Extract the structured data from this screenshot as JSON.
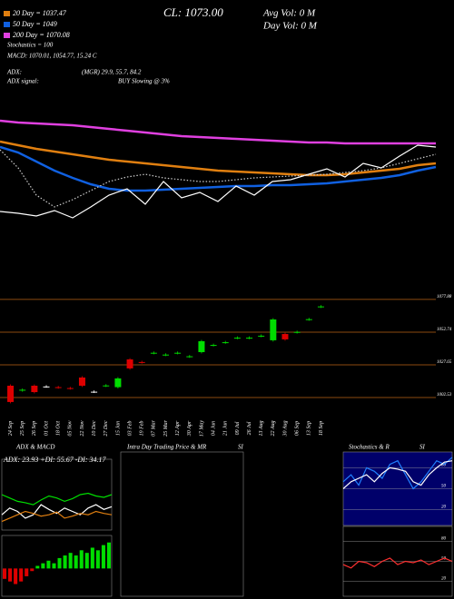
{
  "chart_data": [
    {
      "type": "line",
      "annotations": [
        "Stochastics = 100",
        "MACD: 1070.01, 1054.77, 15.24 C",
        "ADX:",
        "(MGR) 29.9, 55.7, 84.2",
        "ADX signal:",
        "BUY Slowing @ 3%",
        "CL: 1073.00",
        "Avg Vol: 0 M",
        "Day Vol: 0 M"
      ],
      "ylim": [
        1000,
        1100
      ],
      "series": [
        {
          "name": "20 Day = 1037.47",
          "color": "#e07f10",
          "values": [
            1072,
            1070,
            1068,
            1066.5,
            1065,
            1063.5,
            1062,
            1061,
            1060,
            1059,
            1058,
            1057,
            1056,
            1055.5,
            1055,
            1054.5,
            1054,
            1053.5,
            1053.5,
            1054,
            1055,
            1056,
            1057,
            1059,
            1060
          ]
        },
        {
          "name": "50 Day = 1049",
          "color": "#1060e0",
          "values": [
            1069,
            1066,
            1061,
            1056,
            1052,
            1048.5,
            1046,
            1045,
            1045,
            1045.5,
            1046,
            1046.5,
            1047,
            1047.5,
            1047.5,
            1048,
            1048,
            1048.5,
            1049,
            1050,
            1051,
            1052,
            1053.5,
            1056,
            1058
          ]
        },
        {
          "name": "200 Day = 1070.08",
          "color": "#e040e0",
          "values": [
            1083.5,
            1082.5,
            1082,
            1081.5,
            1081,
            1080,
            1079,
            1078,
            1077,
            1076,
            1075,
            1074.5,
            1074,
            1073.5,
            1073,
            1072.5,
            1072,
            1071.5,
            1071.5,
            1071,
            1071,
            1071,
            1071,
            1071,
            1071
          ]
        },
        {
          "color": "#ffffff",
          "values": [
            1033.5,
            1032.5,
            1031,
            1034,
            1030,
            1036,
            1042.5,
            1046,
            1037.5,
            1050,
            1041,
            1044,
            1039,
            1047.5,
            1042.5,
            1050,
            1051,
            1054,
            1057,
            1052.5,
            1060,
            1057.5,
            1064,
            1070,
            1069
          ]
        },
        {
          "color": "#cccccc",
          "dashed": true,
          "values": [
            1067.5,
            1057.5,
            1042.5,
            1036,
            1040,
            1045,
            1050,
            1052.5,
            1054,
            1052,
            1051,
            1050,
            1050,
            1051,
            1052,
            1052.5,
            1053,
            1053.5,
            1054,
            1055,
            1056,
            1057.5,
            1060,
            1062.5,
            1065
          ]
        }
      ]
    },
    {
      "type": "candlestick",
      "categories": [
        "24 Sep",
        "25 Sep",
        "26 Sep",
        "01 Oct",
        "18 Oct",
        "05 Nov",
        "22 Nov",
        "10 Dec",
        "27 Dec",
        "15 Jan",
        "03 Feb",
        "19 Feb",
        "07 Mar",
        "25 Mar",
        "12 Apr",
        "30 Apr",
        "17 May",
        "04 Jun",
        "21 Jun",
        "09 Jul",
        "26 Jul",
        "13 Aug",
        "22 Aug",
        "30 Aug",
        "06 Sep",
        "13 Sep",
        "18 Sep"
      ],
      "open": [
        1011.6,
        1008,
        1011.6,
        1011,
        1010.5,
        1009.8,
        1017.9,
        1007,
        1011.6,
        1010.5,
        1031.8,
        1029.8,
        1036.7,
        1035.3,
        1036.7,
        1034,
        1037.4,
        1042.7,
        1044.8,
        1048.3,
        1048.3,
        1049.8,
        1046.5,
        1051.3,
        1052.7,
        1062.5,
        1072.3
      ],
      "close": [
        999.1,
        1008.5,
        1006.7,
        1011,
        1010.3,
        1009.6,
        1011.6,
        1007,
        1011.8,
        1017.2,
        1024.9,
        1029.6,
        1036.9,
        1035.5,
        1036.9,
        1034.2,
        1045.8,
        1042.9,
        1045,
        1048.5,
        1048.5,
        1050,
        1062.5,
        1047.2,
        1052.9,
        1062.7,
        1072.5
      ],
      "high": [
        1012.6,
        1009.5,
        1012.6,
        1012,
        1011.5,
        1010.8,
        1018.9,
        1008,
        1012.8,
        1018.2,
        1032.8,
        1030.8,
        1037.9,
        1036.5,
        1037.9,
        1035.2,
        1046.8,
        1043.9,
        1046,
        1049.5,
        1049.5,
        1051,
        1063.5,
        1052.3,
        1053.9,
        1063.7,
        1073.5
      ],
      "low": [
        998.1,
        1007,
        1005.7,
        1010,
        1009.3,
        1008.6,
        1010.6,
        1006,
        1010.6,
        1009.5,
        1023.9,
        1028.6,
        1035.7,
        1034.3,
        1035.7,
        1033,
        1036.4,
        1041.7,
        1043.8,
        1047.3,
        1047.3,
        1048.8,
        1045.5,
        1046.2,
        1051.7,
        1061.5,
        1071.3
      ],
      "up_color": "#00dd00",
      "down_color": "#dd0000",
      "ylim": [
        987.2,
        1081.3
      ],
      "yticks": [
        1077.88,
        1052.74,
        1027.65,
        1002.53
      ],
      "grid": true,
      "grid_color": "#8b4a10"
    },
    {
      "type": "line",
      "title": "ADX  & MACD",
      "annotations": [
        "ADX: 23.93 +DI: 55.67 -DI: 34.17"
      ],
      "ylim": [
        0,
        100
      ],
      "series": [
        {
          "color": "#00dd00",
          "values": [
            50,
            45,
            40,
            38,
            35,
            42,
            48,
            45,
            40,
            44,
            50,
            52,
            48,
            46,
            50
          ]
        },
        {
          "color": "#ffffff",
          "values": [
            20,
            30,
            25,
            15,
            20,
            35,
            28,
            22,
            30,
            25,
            20,
            30,
            35,
            28,
            32
          ]
        },
        {
          "color": "#e07f10",
          "values": [
            10,
            15,
            20,
            25,
            22,
            18,
            20,
            24,
            15,
            18,
            22,
            20,
            25,
            22,
            20
          ]
        }
      ]
    },
    {
      "type": "bar",
      "values": [
        -4,
        -5,
        -6,
        -5,
        -3,
        -1,
        1,
        2,
        3,
        2,
        4,
        5,
        6,
        5,
        7,
        6,
        8,
        7,
        9,
        10
      ],
      "ylim": [
        -10,
        12
      ],
      "positive_color": "#00dd00",
      "negative_color": "#dd0000"
    },
    {
      "type": "empty",
      "title": "Intra Day Trading Price & MR",
      "subtitle": "SI"
    },
    {
      "type": "line",
      "title": "Stochastics & R",
      "subtitle": "SI",
      "background": "#00006a",
      "ylim": [
        0,
        100
      ],
      "yticks": [
        20,
        50,
        80
      ],
      "series": [
        {
          "color": "#2080ff",
          "values": [
            60,
            70,
            55,
            80,
            75,
            65,
            85,
            90,
            70,
            50,
            60,
            75,
            90,
            85,
            95
          ]
        },
        {
          "color": "#ffffff",
          "values": [
            50,
            60,
            65,
            70,
            60,
            72,
            80,
            78,
            75,
            60,
            55,
            70,
            80,
            88,
            90
          ]
        }
      ]
    },
    {
      "type": "line",
      "background": "#000000",
      "ylim": [
        0,
        100
      ],
      "yticks": [
        20,
        50,
        80
      ],
      "series": [
        {
          "color": "#ff3030",
          "values": [
            45,
            40,
            50,
            48,
            42,
            50,
            55,
            45,
            50,
            48,
            52,
            45,
            50,
            55,
            50
          ]
        }
      ]
    }
  ]
}
